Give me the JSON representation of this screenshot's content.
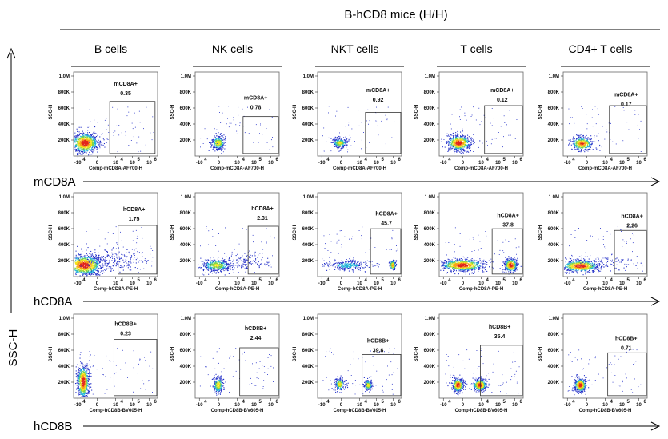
{
  "header": {
    "title": "B-hCD8 mice (H/H)"
  },
  "columns": [
    "B cells",
    "NK cells",
    "NKT cells",
    "T cells",
    "CD4+ T cells"
  ],
  "row_labels": [
    "mCD8A",
    "hCD8A",
    "hCD8B"
  ],
  "y_axis_label": "SSC-H",
  "chart_data": {
    "type": "scatter",
    "plot_kind": "flow-cytometry-density-grid",
    "y_axis": {
      "label": "SSC-H",
      "ticks": [
        "200K",
        "400K",
        "600K",
        "800K",
        "1.0M"
      ],
      "ylim": [
        0,
        1050000
      ]
    },
    "x_ticks": [
      "-10",
      "0",
      "10",
      "10",
      "10"
    ],
    "x_tick_exponents": [
      "4",
      "",
      "4",
      "5",
      "6"
    ],
    "rows": [
      {
        "marker": "mCD8A",
        "x_axis_label": "Comp-mCD8A-AF700-H",
        "gate_label": "mCD8A+",
        "panels": [
          {
            "population": "B cells",
            "percent": "0.35"
          },
          {
            "population": "NK cells",
            "percent": "0.78"
          },
          {
            "population": "NKT cells",
            "percent": "0.92"
          },
          {
            "population": "T cells",
            "percent": "0.12"
          },
          {
            "population": "CD4+ T cells",
            "percent": "0.17"
          }
        ]
      },
      {
        "marker": "hCD8A",
        "x_axis_label": "Comp-hCD8A-PE-H",
        "gate_label": "hCD8A+",
        "panels": [
          {
            "population": "B cells",
            "percent": "1.75"
          },
          {
            "population": "NK cells",
            "percent": "2.31"
          },
          {
            "population": "NKT cells",
            "percent": "45.7"
          },
          {
            "population": "T cells",
            "percent": "37.8"
          },
          {
            "population": "CD4+ T cells",
            "percent": "2.26"
          }
        ]
      },
      {
        "marker": "hCD8B",
        "x_axis_label": "Comp-hCD8B-BV605-H",
        "gate_label": "hCD8B+",
        "panels": [
          {
            "population": "B cells",
            "percent": "0.23"
          },
          {
            "population": "NK cells",
            "percent": "2.44"
          },
          {
            "population": "NKT cells",
            "percent": "39.6"
          },
          {
            "population": "T cells",
            "percent": "35.4"
          },
          {
            "population": "CD4+ T cells",
            "percent": "0.71"
          }
        ]
      }
    ]
  }
}
